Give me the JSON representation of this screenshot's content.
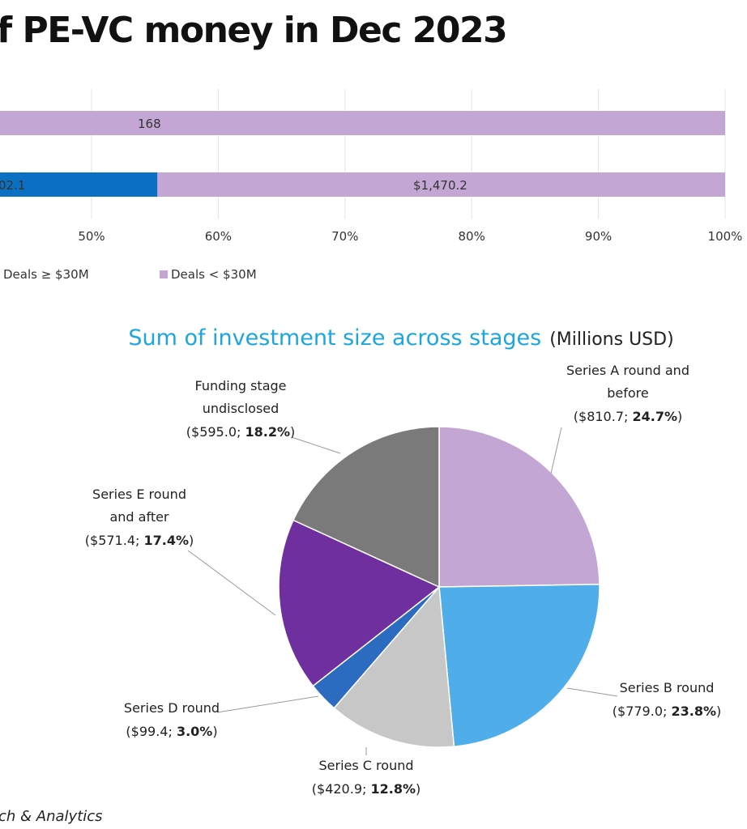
{
  "header": {
    "title": "f PE-VC money in Dec 2023"
  },
  "colors": {
    "deals_lt_30m": "#c3a6d4",
    "deals_ge_30m": "#0b6fc2",
    "grid": "#e4e4e4",
    "pie_title": "#1ba6e0"
  },
  "chart_data": [
    {
      "type": "bar",
      "orientation": "horizontal",
      "stacked": "percent",
      "rows": [
        {
          "segments": [
            {
              "series": "Deals < $30M",
              "label": "168",
              "end_pct": 100
            }
          ]
        },
        {
          "segments": [
            {
              "series": "Deals ≥ $30M",
              "label": "02.1",
              "end_pct": 55.2
            },
            {
              "series": "Deals < $30M",
              "label": "$1,470.2",
              "end_pct": 100
            }
          ]
        }
      ],
      "xticks": [
        "50%",
        "60%",
        "70%",
        "80%",
        "90%",
        "100%"
      ],
      "xtick_values": [
        50,
        60,
        70,
        80,
        90,
        100
      ],
      "legend": [
        "Deals ≥ $30M",
        "Deals < $30M"
      ],
      "grid": true
    },
    {
      "type": "pie",
      "title": "Sum of investment size across stages",
      "title_suffix": "(Millions USD)",
      "slices": [
        {
          "lines": [
            "Series A round and",
            "before"
          ],
          "value_text": "($810.7; ",
          "pct_text": "24.7%",
          "close": ")",
          "value": 810.7,
          "pct": 24.7,
          "color": "#c3a6d4"
        },
        {
          "lines": [
            "Series B round"
          ],
          "value_text": "($779.0; ",
          "pct_text": "23.8%",
          "close": ")",
          "value": 779.0,
          "pct": 23.8,
          "color": "#4fadea"
        },
        {
          "lines": [
            "Series C round"
          ],
          "value_text": "($420.9; ",
          "pct_text": "12.8%",
          "close": ")",
          "value": 420.9,
          "pct": 12.8,
          "color": "#c7c7c7"
        },
        {
          "lines": [
            "Series D round"
          ],
          "value_text": "($99.4; ",
          "pct_text": "3.0%",
          "close": ")",
          "value": 99.4,
          "pct": 3.0,
          "color": "#2b6cc0"
        },
        {
          "lines": [
            "Series E round",
            "and after"
          ],
          "value_text": "($571.4; ",
          "pct_text": "17.4%",
          "close": ")",
          "value": 571.4,
          "pct": 17.4,
          "color": "#6f2f9e"
        },
        {
          "lines": [
            "Funding stage",
            "undisclosed"
          ],
          "value_text": "($595.0; ",
          "pct_text": "18.2%",
          "close": ")",
          "value": 595.0,
          "pct": 18.2,
          "color": "#7a7a7a"
        }
      ]
    }
  ],
  "footer": {
    "source": "ch & Analytics"
  }
}
